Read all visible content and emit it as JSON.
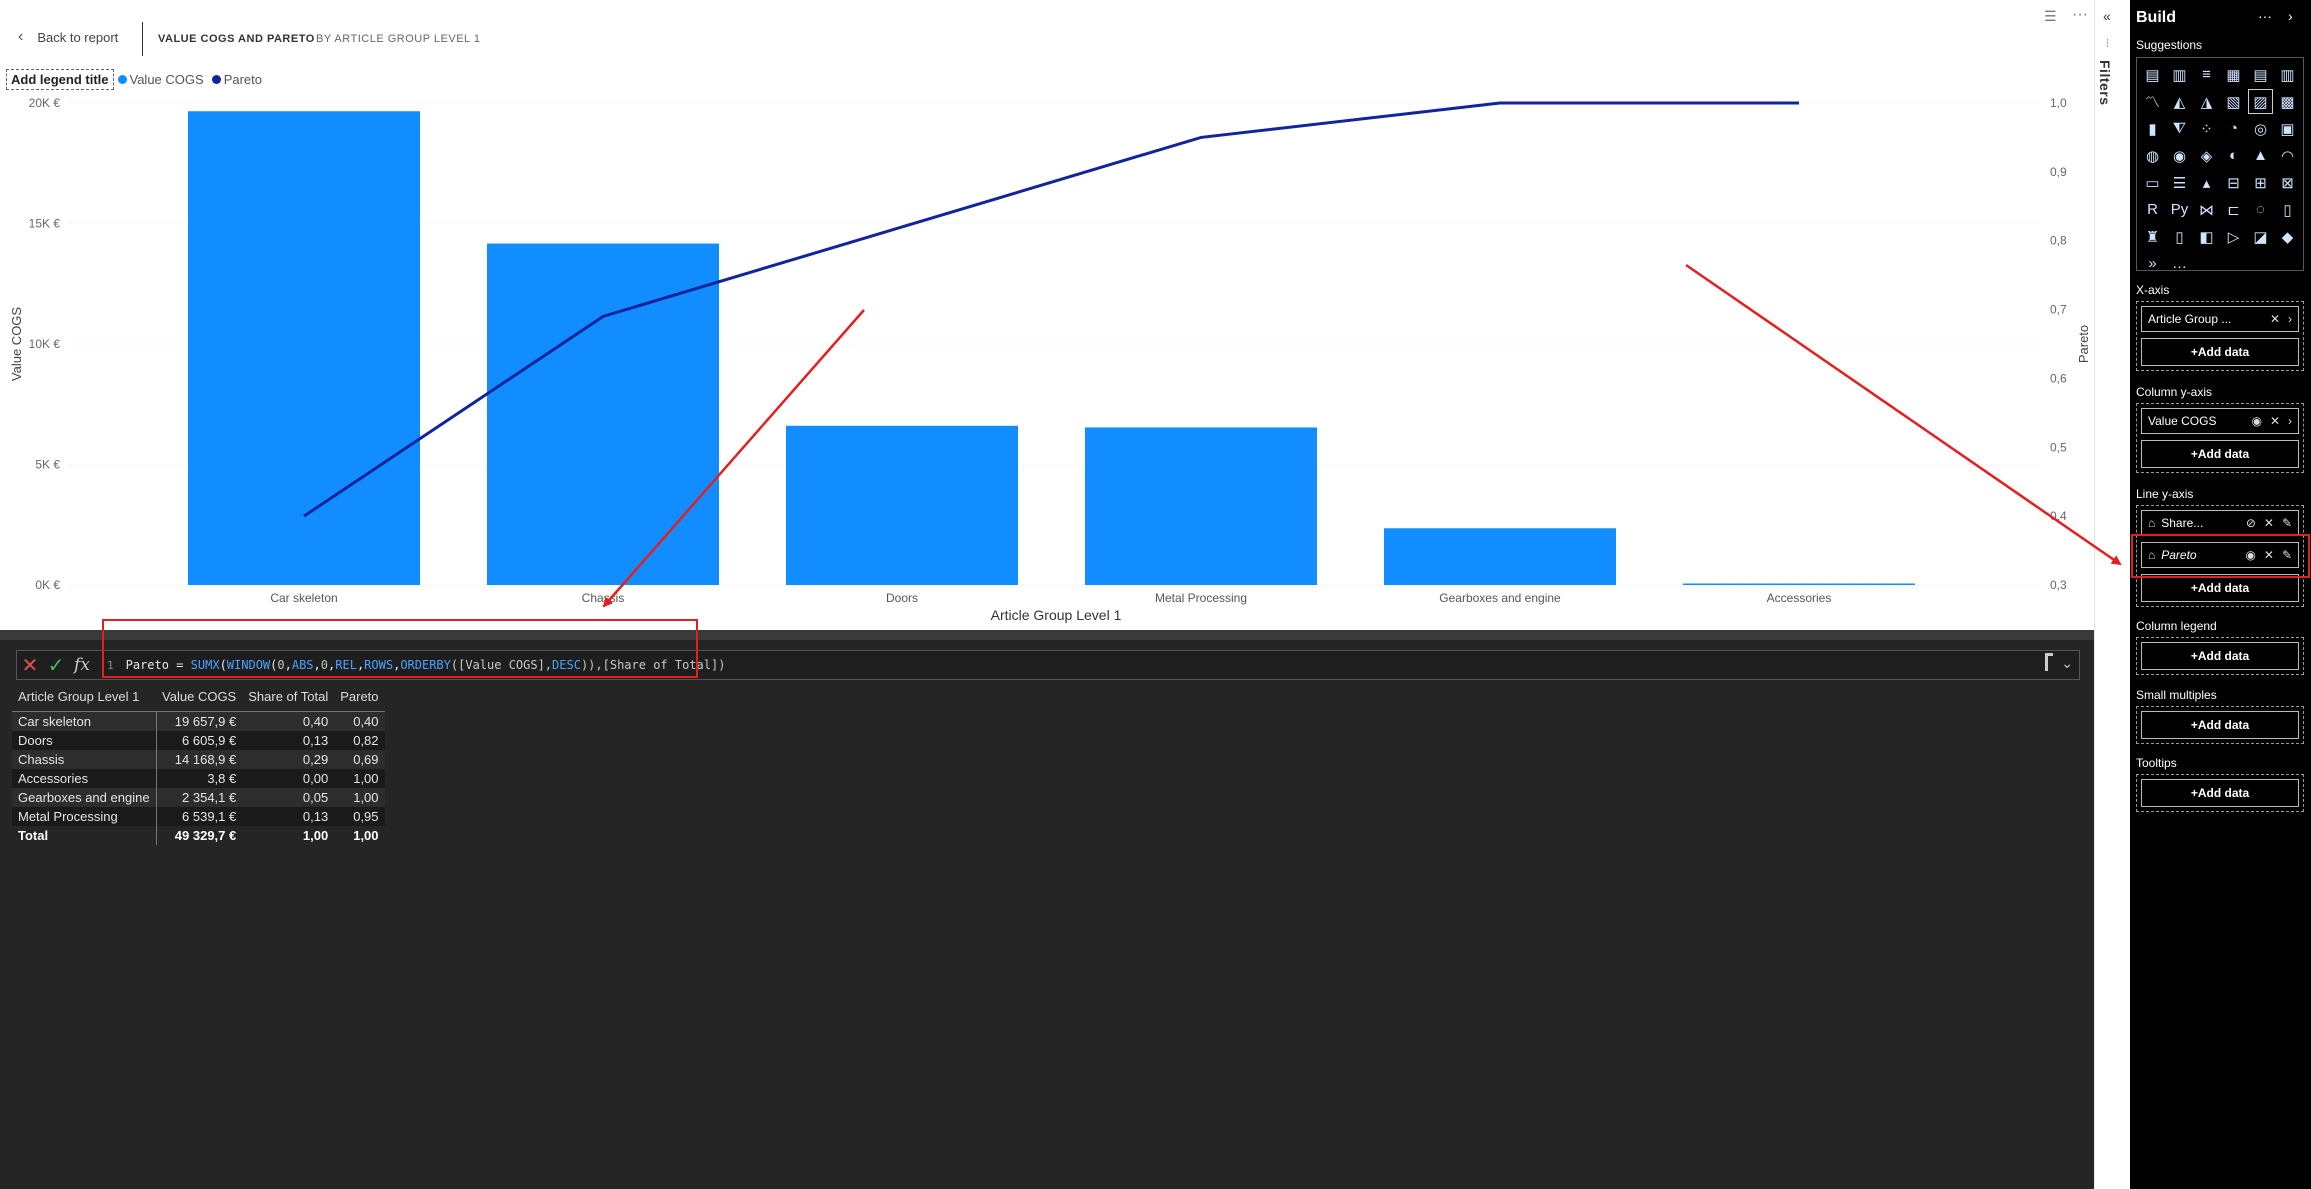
{
  "header": {
    "back_label": "Back to report",
    "title": "VALUE COGS AND PARETO",
    "subtitle": "BY ARTICLE GROUP LEVEL 1"
  },
  "legend": {
    "title": "Add legend title",
    "items": [
      {
        "label": "Value COGS",
        "color": "#118DFF"
      },
      {
        "label": "Pareto",
        "color": "#12239E"
      }
    ]
  },
  "chart_data": {
    "type": "bar",
    "categories": [
      "Car skeleton",
      "Chassis",
      "Doors",
      "Metal Processing",
      "Gearboxes and engine",
      "Accessories"
    ],
    "series": [
      {
        "name": "Value COGS",
        "type": "bar",
        "axis": "left",
        "color": "#118DFF",
        "values": [
          19657.9,
          14168.9,
          6605.9,
          6539.1,
          2354.1,
          3.8
        ]
      },
      {
        "name": "Pareto",
        "type": "line",
        "axis": "right",
        "color": "#12239E",
        "values": [
          0.4,
          0.69,
          0.82,
          0.95,
          1.0,
          1.0
        ]
      }
    ],
    "xlabel": "Article Group Level 1",
    "ylabel": "Value COGS",
    "y2label": "Pareto",
    "ylim": [
      0,
      20000
    ],
    "y2lim": [
      0.3,
      1.0
    ],
    "yticks": [
      "0K €",
      "5K €",
      "10K €",
      "15K €",
      "20K €"
    ],
    "y2ticks": [
      "0,3",
      "0,4",
      "0,5",
      "0,6",
      "0,7",
      "0,8",
      "0,9",
      "1,0"
    ],
    "grid": true
  },
  "formula": {
    "line_number": "1",
    "parts": [
      {
        "t": "Pareto = ",
        "c": "t-measure"
      },
      {
        "t": "SUMX",
        "c": "t-func"
      },
      {
        "t": "(",
        "c": "t-measure"
      },
      {
        "t": "WINDOW",
        "c": "t-func"
      },
      {
        "t": "(",
        "c": "t-measure"
      },
      {
        "t": "0",
        "c": "t-num"
      },
      {
        "t": ",",
        "c": "t-measure"
      },
      {
        "t": "ABS",
        "c": "t-func"
      },
      {
        "t": ",",
        "c": "t-measure"
      },
      {
        "t": "0",
        "c": "t-num"
      },
      {
        "t": ",",
        "c": "t-measure"
      },
      {
        "t": "REL",
        "c": "t-func"
      },
      {
        "t": ",",
        "c": "t-measure"
      },
      {
        "t": "ROWS",
        "c": "t-func"
      },
      {
        "t": ",",
        "c": "t-measure"
      },
      {
        "t": "ORDERBY",
        "c": "t-func"
      },
      {
        "t": "([Value COGS],",
        "c": "t-col"
      },
      {
        "t": "DESC",
        "c": "t-func"
      },
      {
        "t": ")),[Share of Total])",
        "c": "t-col"
      }
    ]
  },
  "table": {
    "columns": [
      "Article Group Level 1",
      "Value COGS",
      "Share of Total",
      "Pareto"
    ],
    "rows": [
      [
        "Car skeleton",
        "19 657,9 €",
        "0,40",
        "0,40"
      ],
      [
        "Doors",
        "6 605,9 €",
        "0,13",
        "0,82"
      ],
      [
        "Chassis",
        "14 168,9 €",
        "0,29",
        "0,69"
      ],
      [
        "Accessories",
        "3,8 €",
        "0,00",
        "1,00"
      ],
      [
        "Gearboxes and engine",
        "2 354,1 €",
        "0,05",
        "1,00"
      ],
      [
        "Metal Processing",
        "6 539,1 €",
        "0,13",
        "0,95"
      ]
    ],
    "total": [
      "Total",
      "49 329,7 €",
      "1,00",
      "1,00"
    ]
  },
  "filters_strip": {
    "label": "Filters"
  },
  "build": {
    "title": "Build",
    "suggestions_label": "Suggestions",
    "wells": [
      {
        "label": "X-axis",
        "fields": [
          {
            "name": "Article Group ...",
            "icons": [
              "close-icon",
              "chevron-right-icon"
            ]
          }
        ],
        "add": "+Add data"
      },
      {
        "label": "Column y-axis",
        "fields": [
          {
            "name": "Value COGS",
            "icons": [
              "eye-icon",
              "close-icon",
              "chevron-right-icon"
            ]
          }
        ],
        "add": "+Add data"
      },
      {
        "label": "Line y-axis",
        "fields": [
          {
            "name": "Share...",
            "icons": [
              "eye-off-icon",
              "close-icon",
              "edit-icon"
            ]
          },
          {
            "name": "Pareto",
            "icons": [
              "eye-icon",
              "close-icon",
              "edit-icon"
            ]
          }
        ],
        "add": "+Add data"
      },
      {
        "label": "Column legend",
        "fields": [],
        "add": "+Add data"
      },
      {
        "label": "Small multiples",
        "fields": [],
        "add": "+Add data"
      },
      {
        "label": "Tooltips",
        "fields": [],
        "add": "+Add data"
      }
    ]
  },
  "colors": {
    "bar": "#118DFF",
    "line": "#12239E",
    "annotation": "#E32020",
    "panel_bg": "#000000",
    "dark_bg": "#252525"
  }
}
